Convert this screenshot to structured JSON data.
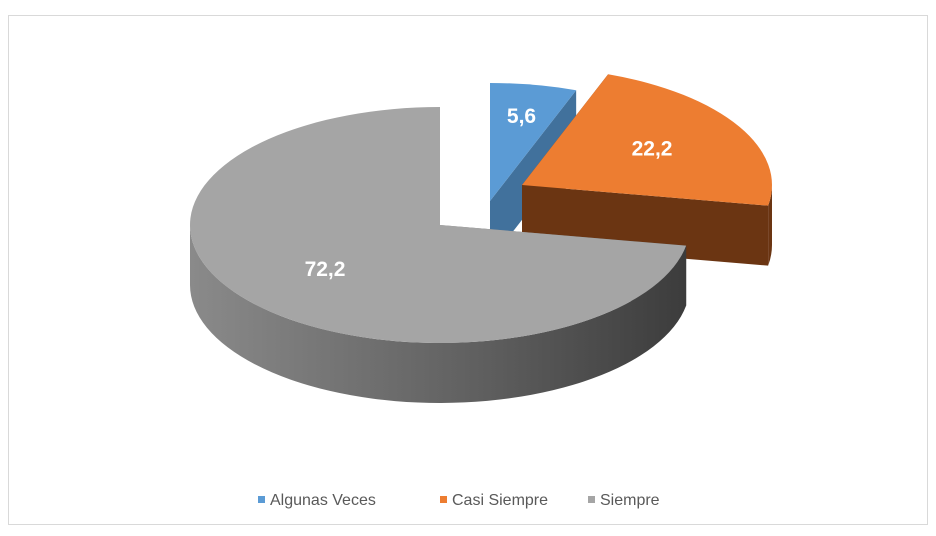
{
  "chart_data": {
    "type": "pie",
    "categories": [
      "Algunas Veces",
      "Casi Siempre",
      "Siempre"
    ],
    "values": [
      5.6,
      22.2,
      72.2
    ],
    "value_labels": [
      "5,6",
      "22,2",
      "72,2"
    ],
    "colors": [
      "#5b9bd5",
      "#ed7d31",
      "#a5a5a5"
    ],
    "legend": "bottom",
    "three_d": true,
    "exploded": true
  }
}
